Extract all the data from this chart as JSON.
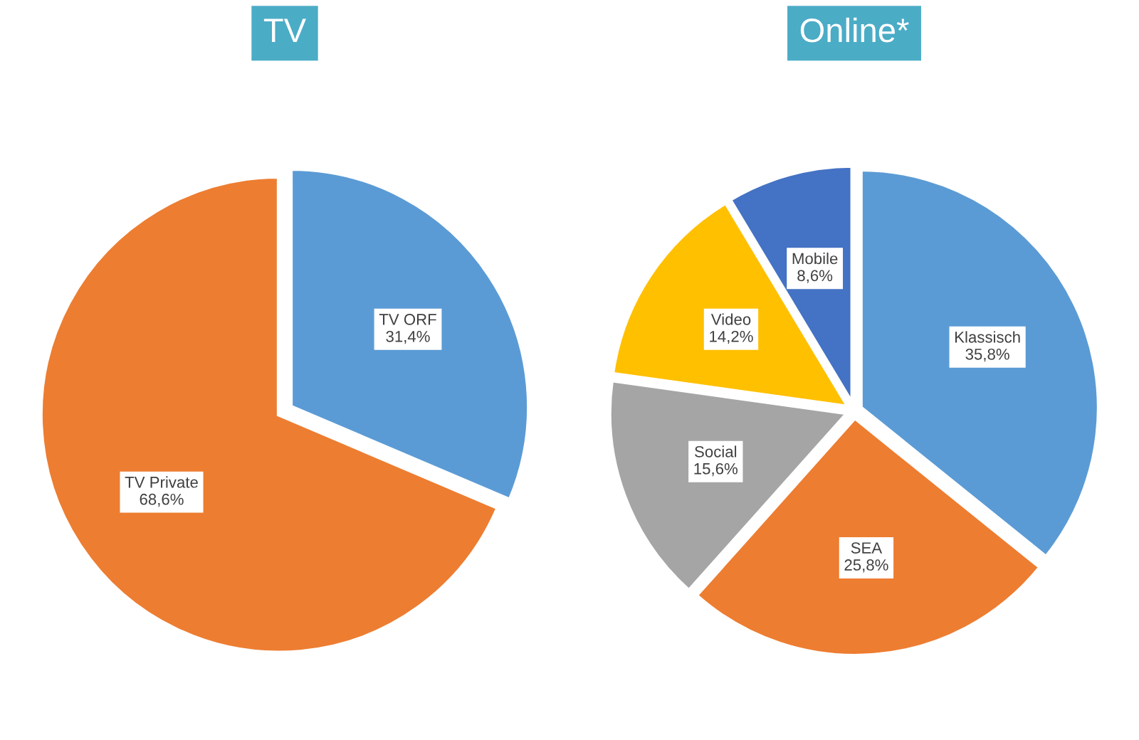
{
  "chart_data": [
    {
      "type": "pie",
      "title": "TV",
      "categories": [
        "TV ORF",
        "TV Private"
      ],
      "values": [
        31.4,
        68.6
      ],
      "colors": [
        "#5b9bd5",
        "#ed7d31"
      ],
      "value_labels": [
        "31,4%",
        "68,6%"
      ]
    },
    {
      "type": "pie",
      "title": "Online*",
      "categories": [
        "Klassisch",
        "SEA",
        "Social",
        "Video",
        "Mobile"
      ],
      "values": [
        35.8,
        25.8,
        15.6,
        14.2,
        8.6
      ],
      "colors": [
        "#5b9bd5",
        "#ed7d31",
        "#a5a5a5",
        "#ffc000",
        "#4472c4"
      ],
      "value_labels": [
        "35,8%",
        "25,8%",
        "15,6%",
        "14,2%",
        "8,6%"
      ]
    }
  ]
}
